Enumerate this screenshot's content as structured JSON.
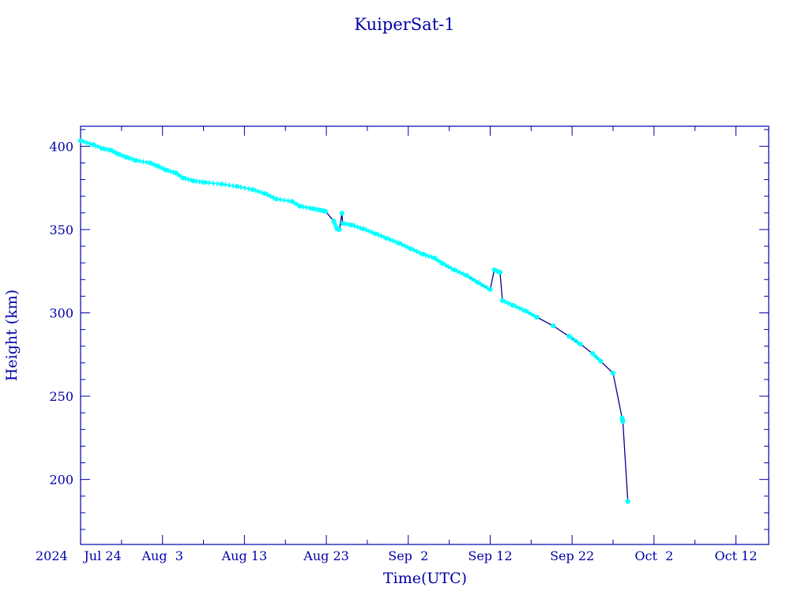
{
  "chart_data": {
    "type": "line",
    "title": "KuiperSat-1",
    "xlabel": "Time(UTC)",
    "ylabel": "Height (km)",
    "x_units": "days since 2024 Jul 24",
    "xlim": [
      0,
      84
    ],
    "ylim": [
      161,
      412
    ],
    "year_label": "2024",
    "x_ticks": [
      {
        "day": 0,
        "label": "Jul 24"
      },
      {
        "day": 10,
        "label": "Aug  3"
      },
      {
        "day": 20,
        "label": "Aug 13"
      },
      {
        "day": 30,
        "label": "Aug 23"
      },
      {
        "day": 40,
        "label": "Sep  2"
      },
      {
        "day": 50,
        "label": "Sep 12"
      },
      {
        "day": 60,
        "label": "Sep 22"
      },
      {
        "day": 70,
        "label": "Oct  2"
      },
      {
        "day": 80,
        "label": "Oct 12"
      }
    ],
    "y_ticks": [
      {
        "value": 200,
        "label": "200"
      },
      {
        "value": 250,
        "label": "250"
      },
      {
        "value": 300,
        "label": "300"
      },
      {
        "value": 350,
        "label": "350"
      },
      {
        "value": 400,
        "label": "400"
      }
    ],
    "series": [
      {
        "name": "Height",
        "line_color": "#000090",
        "marker_color": "#00ffff",
        "points": [
          [
            0,
            403.3
          ],
          [
            1.5,
            401
          ],
          [
            2.7,
            398.6
          ],
          [
            3.7,
            397.6
          ],
          [
            4.6,
            395.3
          ],
          [
            5.6,
            393.4
          ],
          [
            6.75,
            391.5
          ],
          [
            8.5,
            390
          ],
          [
            9.45,
            388
          ],
          [
            10.4,
            385.8
          ],
          [
            11.6,
            384
          ],
          [
            12.5,
            381
          ],
          [
            13.8,
            379.2
          ],
          [
            15.2,
            378.3
          ],
          [
            17.2,
            377.3
          ],
          [
            19.1,
            375.9
          ],
          [
            21,
            374
          ],
          [
            22.5,
            371.6
          ],
          [
            23.9,
            368.3
          ],
          [
            25.8,
            366.9
          ],
          [
            26.8,
            364
          ],
          [
            28.3,
            362.6
          ],
          [
            29.2,
            361.7
          ],
          [
            29.9,
            361
          ],
          [
            30.9,
            355.1
          ],
          [
            31.3,
            350.4
          ],
          [
            31.6,
            350
          ],
          [
            31.9,
            359.8
          ],
          [
            32,
            353.7
          ],
          [
            33.1,
            352.7
          ],
          [
            34.5,
            350.4
          ],
          [
            36,
            347.5
          ],
          [
            37.4,
            344.7
          ],
          [
            38.9,
            341.8
          ],
          [
            40.3,
            338.5
          ],
          [
            41.8,
            335.2
          ],
          [
            43.2,
            332.9
          ],
          [
            44.2,
            329.6
          ],
          [
            45.6,
            325.8
          ],
          [
            47.1,
            322.5
          ],
          [
            48.5,
            318.2
          ],
          [
            50,
            314
          ],
          [
            50.5,
            325.8
          ],
          [
            51.2,
            324.3
          ],
          [
            51.5,
            307.3
          ],
          [
            52.8,
            304.5
          ],
          [
            54.3,
            301.2
          ],
          [
            55.7,
            297.4
          ],
          [
            57.7,
            292.2
          ],
          [
            59.6,
            286
          ],
          [
            61,
            281.3
          ],
          [
            62.5,
            275.6
          ],
          [
            63.5,
            270.9
          ],
          [
            65,
            263.8
          ],
          [
            66.1,
            236.9
          ],
          [
            66.2,
            234.8
          ],
          [
            66.8,
            186.8
          ]
        ]
      }
    ]
  }
}
